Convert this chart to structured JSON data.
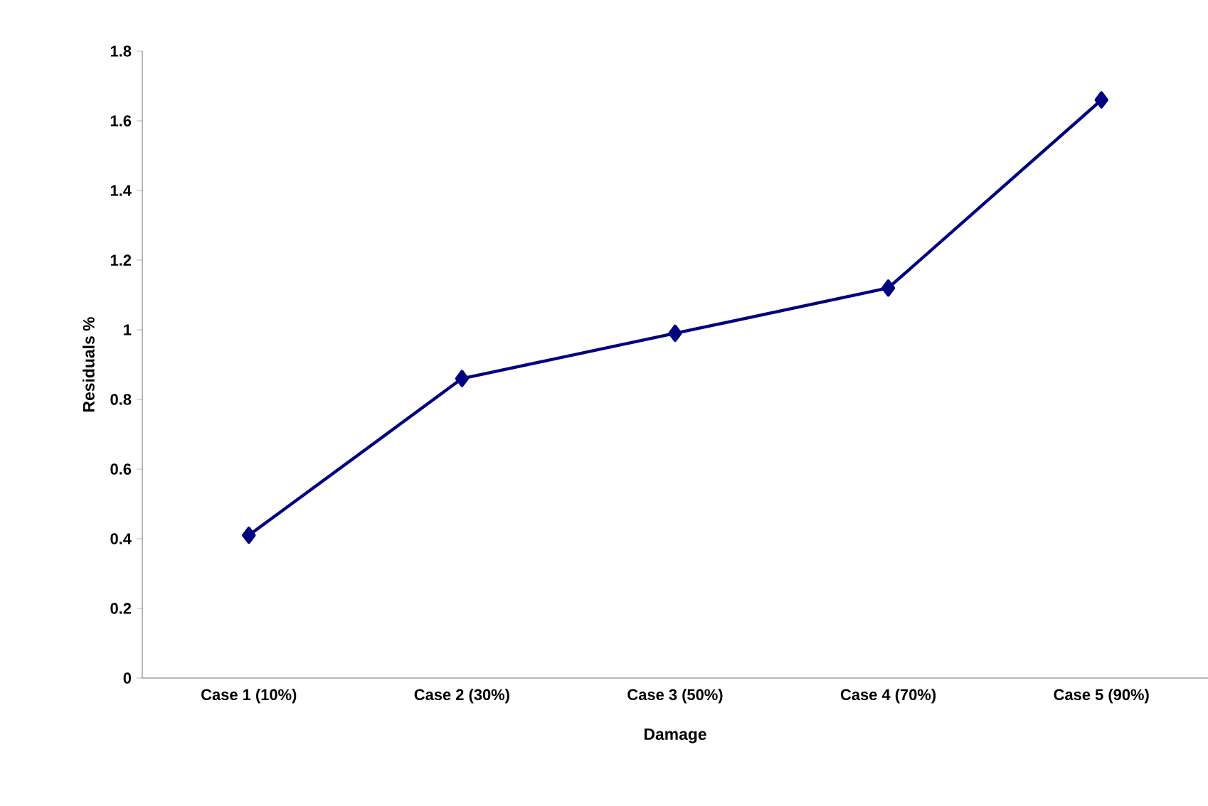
{
  "chart_data": {
    "type": "line",
    "xlabel": "Damage",
    "ylabel": "Residuals %",
    "categories": [
      "Case 1 (10%)",
      "Case 2 (30%)",
      "Case 3 (50%)",
      "Case 4 (70%)",
      "Case 5 (90%)"
    ],
    "series": [
      {
        "color": "#000080",
        "values": [
          0.41,
          0.86,
          0.99,
          1.12,
          1.66
        ]
      }
    ],
    "ylim": [
      0,
      1.8
    ],
    "yticks": [
      0,
      0.2,
      0.4,
      0.6,
      0.8,
      1,
      1.2,
      1.4,
      1.6,
      1.8
    ],
    "marker": "diamond",
    "line_style": "solid",
    "grid": false
  }
}
